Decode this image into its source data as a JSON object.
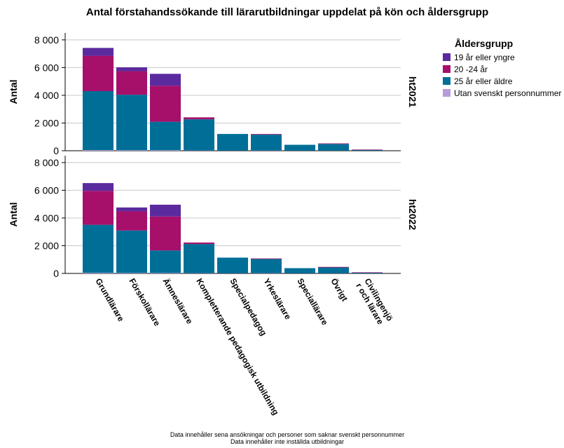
{
  "chart_data": {
    "type": "bar",
    "stacked": true,
    "title": "Antal förstahandssökande till lärarutbildningar uppdelat på kön och åldersgrupp",
    "ylabel": "Antal",
    "xlabel": "",
    "ylim": [
      0,
      8500
    ],
    "yticks": [
      0,
      2000,
      4000,
      6000,
      8000
    ],
    "ytick_labels": [
      "0",
      "2 000",
      "4 000",
      "6 000",
      "8 000"
    ],
    "grid": true,
    "categories": [
      "Grundlärare",
      "Förskollärare",
      "Ämneslärare",
      "Kompletterande pedagogisk utbildning",
      "Specialpedagog",
      "Yrkeslärare",
      "Speciallärare",
      "Övrigt",
      "Civilingenjör och lärare"
    ],
    "category_labels": [
      [
        "Grundlärare"
      ],
      [
        "Förskollärare"
      ],
      [
        "Ämneslärare"
      ],
      [
        "Kompletterande pedagogisk utbildning"
      ],
      [
        "Specialpedagog"
      ],
      [
        "Yrkeslärare"
      ],
      [
        "Speciallärare"
      ],
      [
        "Övrigt"
      ],
      [
        "Civilingenjö",
        "r och lärare"
      ]
    ],
    "legend": {
      "title": "Åldersgrupp",
      "placement": "right",
      "entries": [
        {
          "name": "19 år eller yngre",
          "color": "#5b2a9e"
        },
        {
          "name": "20 -24 år",
          "color": "#a60f6a"
        },
        {
          "name": "25 år eller äldre",
          "color": "#006f98"
        },
        {
          "name": "Utan svenskt personnummer",
          "color": "#b99ad8"
        }
      ]
    },
    "panels": [
      {
        "label": "ht2021",
        "series": [
          {
            "name": "Utan svenskt personnummer",
            "values": [
              50,
              40,
              40,
              20,
              10,
              20,
              10,
              10,
              5
            ]
          },
          {
            "name": "25 år eller äldre",
            "values": [
              4250,
              4000,
              2050,
              2250,
              1200,
              1150,
              420,
              480,
              55
            ]
          },
          {
            "name": "20 -24 år",
            "values": [
              2550,
              1700,
              2600,
              140,
              0,
              40,
              0,
              40,
              30
            ]
          },
          {
            "name": "19 år eller yngre",
            "values": [
              570,
              280,
              860,
              0,
              0,
              0,
              0,
              0,
              0
            ]
          }
        ]
      },
      {
        "label": "ht2022",
        "series": [
          {
            "name": "Utan svenskt personnummer",
            "values": [
              40,
              30,
              30,
              20,
              10,
              20,
              10,
              10,
              5
            ]
          },
          {
            "name": "25 år eller äldre",
            "values": [
              3470,
              3070,
              1630,
              2100,
              1130,
              1020,
              370,
              420,
              45
            ]
          },
          {
            "name": "20 -24 år",
            "values": [
              2450,
              1380,
              2450,
              110,
              0,
              40,
              0,
              40,
              30
            ]
          },
          {
            "name": "19 år eller yngre",
            "values": [
              560,
              280,
              850,
              0,
              0,
              0,
              0,
              0,
              0
            ]
          }
        ]
      }
    ],
    "footnotes": [
      "Data innehåller sena ansökningar och personer som saknar svenskt personnummer",
      "Data innehåller inte inställda utbildningar"
    ]
  }
}
